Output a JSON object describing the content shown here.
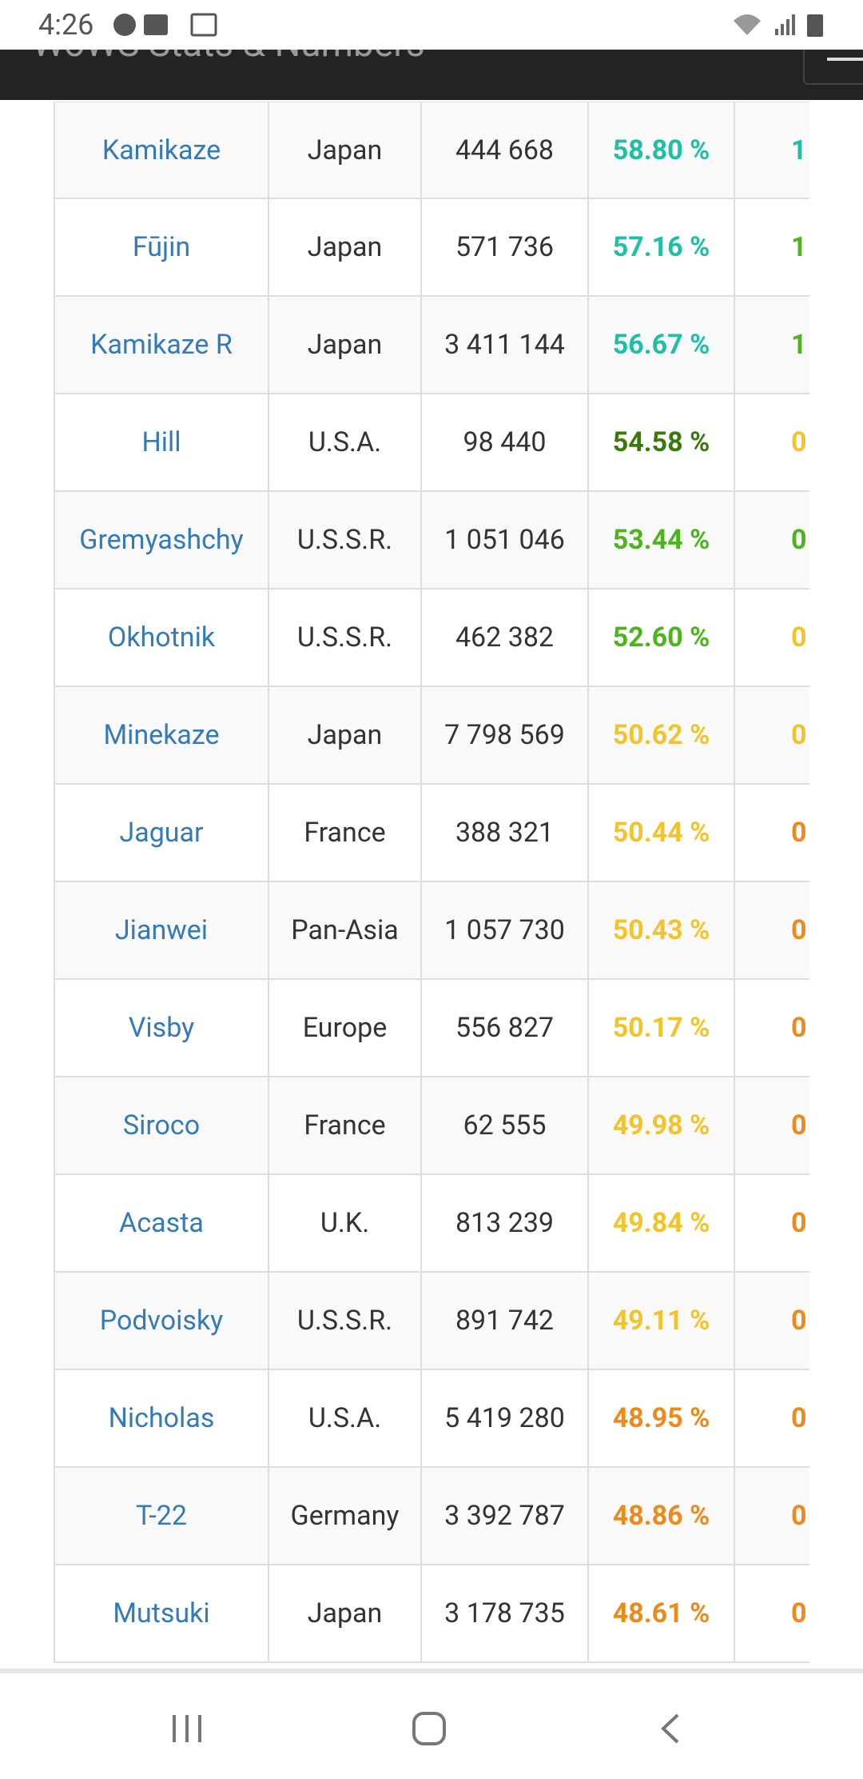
{
  "status_bar": {
    "time": "4:26"
  },
  "header": {
    "title": "WoWS Stats & Numbers"
  },
  "table": {
    "rows": [
      {
        "name": "Kamikaze",
        "nation": "Japan",
        "battles": "444 668",
        "winrate": "58.80 %",
        "winrate_color": "#1fbfa6",
        "next": "1",
        "next_color": "#1fbfa6"
      },
      {
        "name": "Fūjin",
        "nation": "Japan",
        "battles": "571 736",
        "winrate": "57.16 %",
        "winrate_color": "#1fbfa6",
        "next": "1",
        "next_color": "#4cb51c"
      },
      {
        "name": "Kamikaze R",
        "nation": "Japan",
        "battles": "3 411 144",
        "winrate": "56.67 %",
        "winrate_color": "#1fbfa6",
        "next": "1",
        "next_color": "#4cb51c"
      },
      {
        "name": "Hill",
        "nation": "U.S.A.",
        "battles": "98 440",
        "winrate": "54.58 %",
        "winrate_color": "#3b7a0a",
        "next": "0",
        "next_color": "#f2c42a"
      },
      {
        "name": "Gremyashchy",
        "nation": "U.S.S.R.",
        "battles": "1 051 046",
        "winrate": "53.44 %",
        "winrate_color": "#4cb51c",
        "next": "0",
        "next_color": "#4cb51c"
      },
      {
        "name": "Okhotnik",
        "nation": "U.S.S.R.",
        "battles": "462 382",
        "winrate": "52.60 %",
        "winrate_color": "#4cb51c",
        "next": "0",
        "next_color": "#f2c42a"
      },
      {
        "name": "Minekaze",
        "nation": "Japan",
        "battles": "7 798 569",
        "winrate": "50.62 %",
        "winrate_color": "#f2c42a",
        "next": "0",
        "next_color": "#f2c42a"
      },
      {
        "name": "Jaguar",
        "nation": "France",
        "battles": "388 321",
        "winrate": "50.44 %",
        "winrate_color": "#f2c42a",
        "next": "0",
        "next_color": "#ec8a1c"
      },
      {
        "name": "Jianwei",
        "nation": "Pan-Asia",
        "battles": "1 057 730",
        "winrate": "50.43 %",
        "winrate_color": "#f2c42a",
        "next": "0",
        "next_color": "#ec8a1c"
      },
      {
        "name": "Visby",
        "nation": "Europe",
        "battles": "556 827",
        "winrate": "50.17 %",
        "winrate_color": "#f2c42a",
        "next": "0",
        "next_color": "#ec8a1c"
      },
      {
        "name": "Siroco",
        "nation": "France",
        "battles": "62 555",
        "winrate": "49.98 %",
        "winrate_color": "#f2c42a",
        "next": "0",
        "next_color": "#ec8a1c"
      },
      {
        "name": "Acasta",
        "nation": "U.K.",
        "battles": "813 239",
        "winrate": "49.84 %",
        "winrate_color": "#f2c42a",
        "next": "0",
        "next_color": "#ec8a1c"
      },
      {
        "name": "Podvoisky",
        "nation": "U.S.S.R.",
        "battles": "891 742",
        "winrate": "49.11 %",
        "winrate_color": "#f2c42a",
        "next": "0",
        "next_color": "#ec8a1c"
      },
      {
        "name": "Nicholas",
        "nation": "U.S.A.",
        "battles": "5 419 280",
        "winrate": "48.95 %",
        "winrate_color": "#ec8a1c",
        "next": "0",
        "next_color": "#ec8a1c"
      },
      {
        "name": "T-22",
        "nation": "Germany",
        "battles": "3 392 787",
        "winrate": "48.86 %",
        "winrate_color": "#ec8a1c",
        "next": "0",
        "next_color": "#ec8a1c"
      },
      {
        "name": "Mutsuki",
        "nation": "Japan",
        "battles": "3 178 735",
        "winrate": "48.61 %",
        "winrate_color": "#ec8a1c",
        "next": "0",
        "next_color": "#ec8a1c"
      }
    ]
  }
}
